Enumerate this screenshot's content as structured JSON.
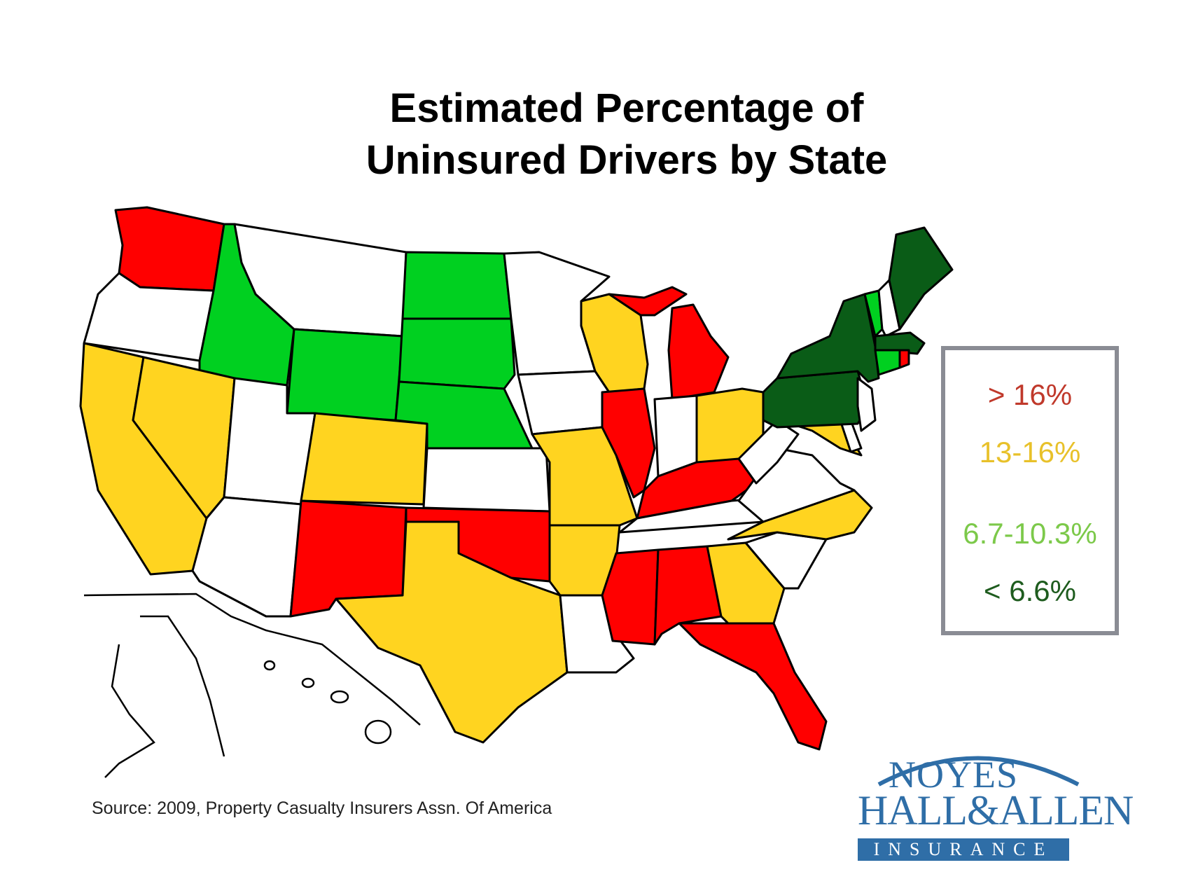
{
  "title": {
    "line1": "Estimated Percentage of",
    "line2": "Uninsured Drivers by State"
  },
  "colors": {
    "red": "#ff0000",
    "yellow": "#ffd420",
    "green": "#00d020",
    "dark_green": "#0a5c17",
    "white": "#ffffff"
  },
  "legend": {
    "items": [
      {
        "label": "> 16%",
        "color": "#c0392b"
      },
      {
        "label": "13-16%",
        "color": "#e8c12a"
      },
      {
        "label": "6.7-10.3%",
        "color": "#7cc94a"
      },
      {
        "label": "< 6.6%",
        "color": "#1e5c1e"
      }
    ]
  },
  "source": "Source: 2009, Property Casualty Insurers Assn. Of America",
  "logo": {
    "line1": "NOYES",
    "line2": "HALL&ALLEN",
    "line3": "INSURANCE"
  }
}
